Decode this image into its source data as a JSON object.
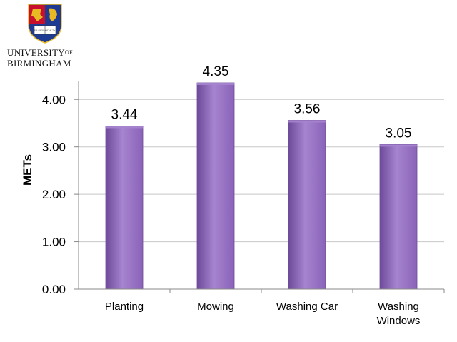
{
  "logo": {
    "name_line1": "UNIVERSITY",
    "name_of": "OF",
    "name_line2": "BIRMINGHAM",
    "book_text_left": "PER ARDUA",
    "book_text_right": "AD ALTA",
    "colors": {
      "shield_red": "#c8102e",
      "shield_blue": "#1f3a93",
      "gold": "#e8b923"
    }
  },
  "chart_data": {
    "type": "bar",
    "categories": [
      "Planting",
      "Mowing",
      "Washing Car",
      "Washing Windows"
    ],
    "values": [
      3.44,
      4.35,
      3.56,
      3.05
    ],
    "value_labels": [
      "3.44",
      "4.35",
      "3.56",
      "3.05"
    ],
    "title": "",
    "xlabel": "",
    "ylabel": "METs",
    "ylim": [
      0,
      4.35
    ],
    "yticks": [
      0,
      1,
      2,
      3,
      4
    ],
    "ytick_labels": [
      "0.00",
      "1.00",
      "2.00",
      "3.00",
      "4.00"
    ],
    "grid": true,
    "legend": "none",
    "bar_color": "#8a63b8",
    "bar_color_light": "#a684cf",
    "bar_color_dark": "#6e4a9a"
  }
}
